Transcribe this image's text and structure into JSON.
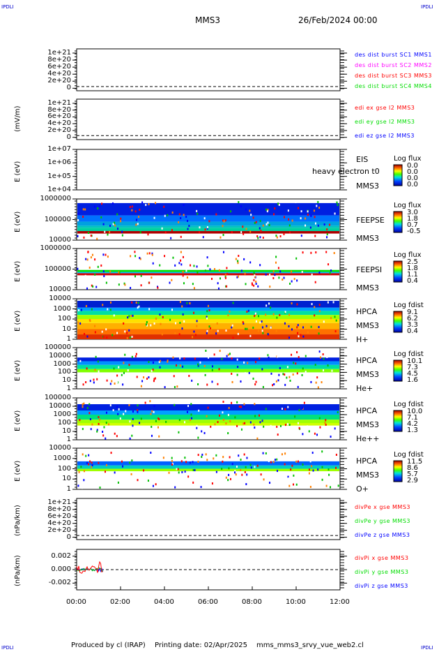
{
  "corner_label": "IPDLI",
  "header": {
    "title": "MMS3",
    "date": "26/Feb/2024 00:00"
  },
  "footer": {
    "produced": "Produced by cl (IRAP)",
    "printing": "Printing date: 02/Apr/2025",
    "file": "mms_mms3_srvy_vue_web2.cl"
  },
  "colors": {
    "red": "#ff0000",
    "green": "#00dd00",
    "blue": "#0000ff",
    "magenta": "#ff00ff"
  },
  "chart_data": {
    "type": "multi-panel time series / spectrogram",
    "x_range": [
      "00:00",
      "12:00"
    ],
    "x_ticks": [
      "00:00",
      "02:00",
      "04:00",
      "06:00",
      "08:00",
      "10:00",
      "12:00"
    ],
    "panels": [
      {
        "type": "line",
        "ylabel": "",
        "yticks": [
          "1e+21",
          "8e+20",
          "6e+20",
          "4e+20",
          "2e+20",
          "0"
        ],
        "zero_line": true,
        "legend": [
          {
            "text": "des dist burst SC1 MMS1",
            "color": "#0000ff"
          },
          {
            "text": "des dist burst SC2 MMS2",
            "color": "#ff00ff"
          },
          {
            "text": "des dist burst SC3 MMS3",
            "color": "#ff0000"
          },
          {
            "text": "des dist burst SC4 MMS4",
            "color": "#00dd00"
          }
        ]
      },
      {
        "type": "line",
        "ylabel": "(mV/m)",
        "yticks": [
          "1e+21",
          "8e+20",
          "6e+20",
          "4e+20",
          "2e+20",
          "0"
        ],
        "zero_line": true,
        "legend": [
          {
            "text": "edi ex gse l2 MMS3",
            "color": "#ff0000"
          },
          {
            "text": "edi ey gse l2 MMS3",
            "color": "#00dd00"
          },
          {
            "text": "edi ez gse l2 MMS3",
            "color": "#0000ff"
          }
        ]
      },
      {
        "type": "spectrogram",
        "ylabel": "E (eV)",
        "yticks": [
          "1e+07",
          "1e+06",
          "1e+05",
          "1e+04"
        ],
        "labels": [
          "EIS",
          "heavy electron t0",
          "MMS3"
        ],
        "cb_title": "Log flux",
        "cb_ticks": [
          "0.0",
          "0.0",
          "0.0",
          "0.0"
        ],
        "fill": "none"
      },
      {
        "type": "spectrogram",
        "ylabel": "E (eV)",
        "yticks": [
          "1000000",
          "100000",
          "10000"
        ],
        "labels": [
          "FEEPSE",
          "MMS3"
        ],
        "cb_title": "Log flux",
        "cb_ticks": [
          "3.0",
          "1.8",
          "0.7",
          "-0.5"
        ],
        "fill": "feepse"
      },
      {
        "type": "spectrogram",
        "ylabel": "E (eV)",
        "yticks": [
          "1000000",
          "100000",
          "10000"
        ],
        "labels": [
          "FEEPSI",
          "MMS3"
        ],
        "cb_title": "Log flux",
        "cb_ticks": [
          "2.5",
          "1.8",
          "1.1",
          "0.4"
        ],
        "fill": "feepsi"
      },
      {
        "type": "spectrogram",
        "ylabel": "E (eV)",
        "yticks": [
          "10000",
          "1000",
          "100",
          "10",
          "1"
        ],
        "labels": [
          "HPCA",
          "MMS3",
          "H+"
        ],
        "cb_title": "Log fdist",
        "cb_ticks": [
          "9.1",
          "6.2",
          "3.3",
          "0.4"
        ],
        "fill": "h"
      },
      {
        "type": "spectrogram",
        "ylabel": "E (eV)",
        "yticks": [
          "100000",
          "10000",
          "1000",
          "100",
          "10",
          "1"
        ],
        "labels": [
          "HPCA",
          "MMS3",
          "He+"
        ],
        "cb_title": "Log fdist",
        "cb_ticks": [
          "10.1",
          "7.3",
          "4.5",
          "1.6"
        ],
        "fill": "he"
      },
      {
        "type": "spectrogram",
        "ylabel": "E (eV)",
        "yticks": [
          "100000",
          "10000",
          "1000",
          "100",
          "10",
          "1"
        ],
        "labels": [
          "HPCA",
          "MMS3",
          "He++"
        ],
        "cb_title": "Log fdist",
        "cb_ticks": [
          "10.0",
          "7.1",
          "4.2",
          "1.3"
        ],
        "fill": "hepp"
      },
      {
        "type": "spectrogram",
        "ylabel": "E (eV)",
        "yticks": [
          "10000",
          "1000",
          "100",
          "10",
          "1"
        ],
        "labels": [
          "HPCA",
          "MMS3",
          "O+"
        ],
        "cb_title": "Log fdist",
        "cb_ticks": [
          "11.5",
          "8.6",
          "5.7",
          "2.9"
        ],
        "fill": "o"
      },
      {
        "type": "line",
        "ylabel": "(nPa/km)",
        "yticks": [
          "1e+21",
          "8e+20",
          "6e+20",
          "4e+20",
          "2e+20",
          "0"
        ],
        "zero_line": true,
        "legend": [
          {
            "text": "divPe x gse MMS3",
            "color": "#ff0000"
          },
          {
            "text": "divPe y gse MMS3",
            "color": "#00dd00"
          },
          {
            "text": "divPe z gse MMS3",
            "color": "#0000ff"
          }
        ]
      },
      {
        "type": "line",
        "ylabel": "(nPa/km)",
        "yticks": [
          "0.002",
          "0.000",
          "-0.002"
        ],
        "zero_line": true,
        "ylim": [
          -0.003,
          0.003
        ],
        "data_span_hours": [
          0.0,
          1.2
        ],
        "legend": [
          {
            "text": "divPi x gse MMS3",
            "color": "#ff0000"
          },
          {
            "text": "divPi y gse MMS3",
            "color": "#00dd00"
          },
          {
            "text": "divPi z gse MMS3",
            "color": "#0000ff"
          }
        ]
      }
    ]
  }
}
